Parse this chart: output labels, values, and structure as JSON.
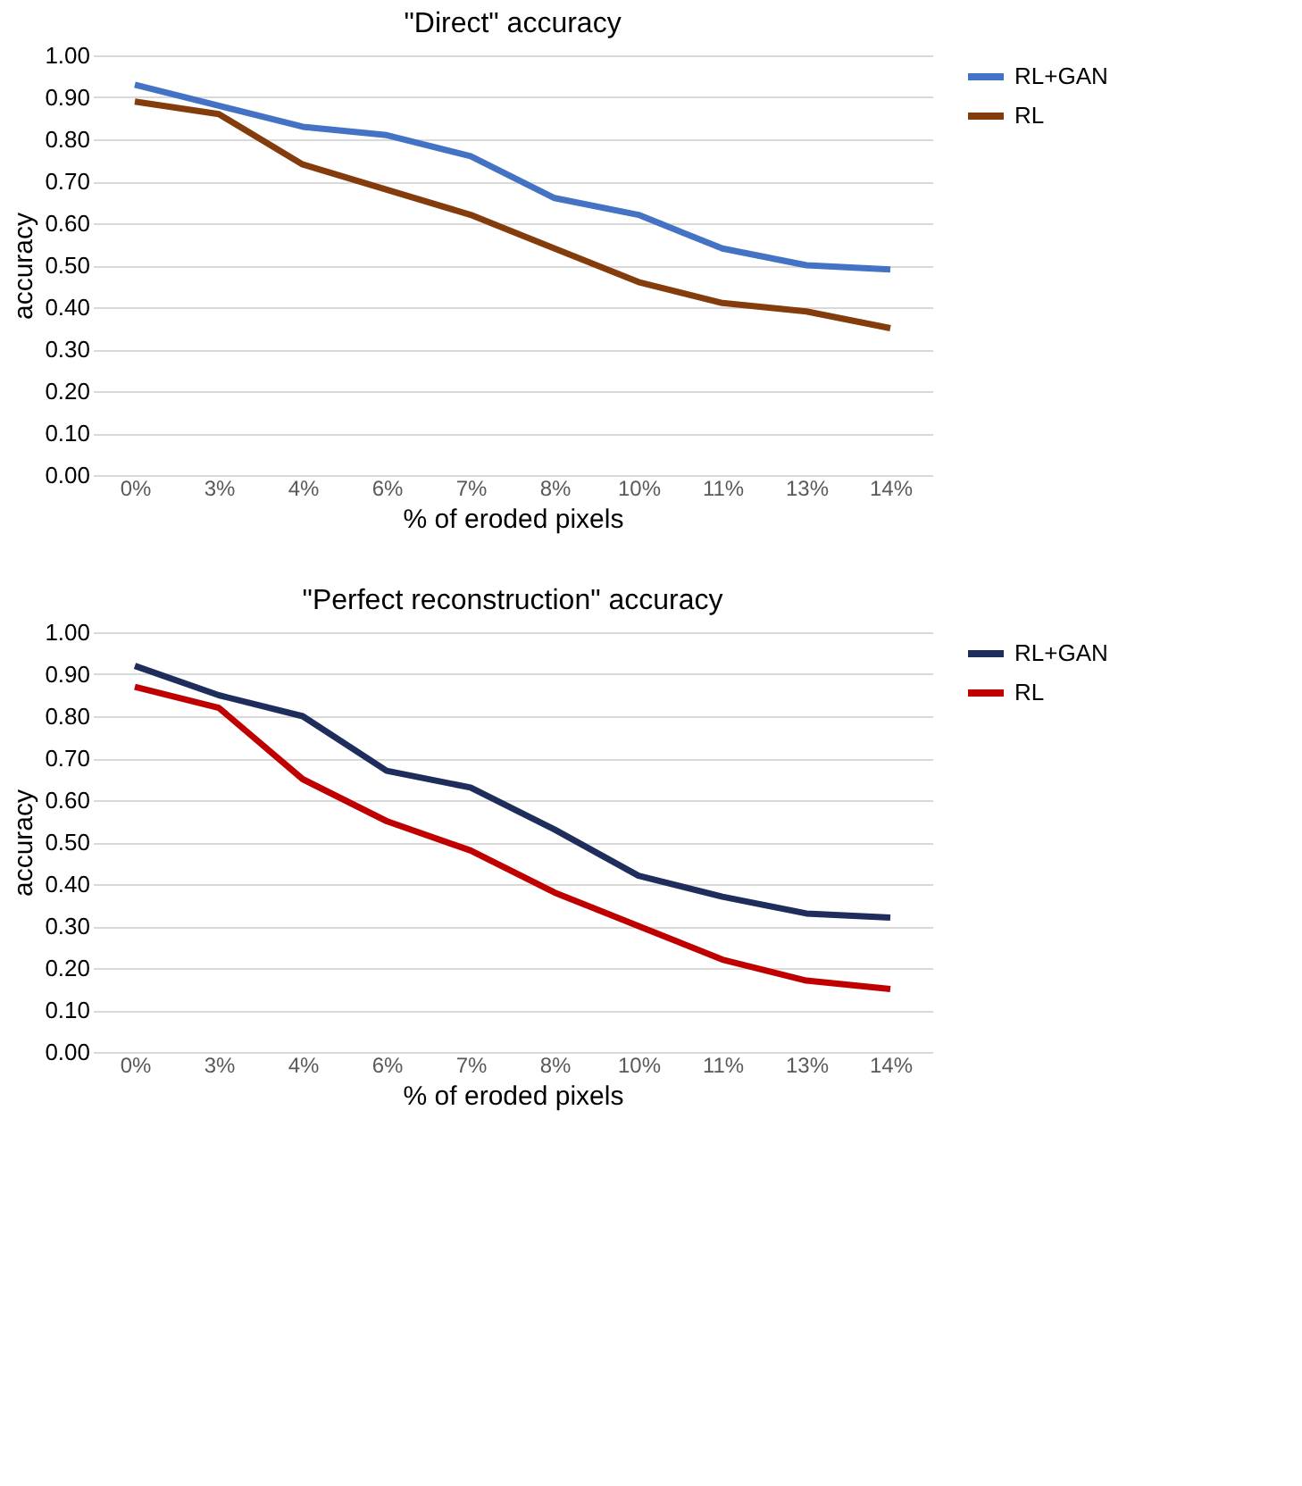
{
  "chart_data": [
    {
      "type": "line",
      "title": "\"Direct\" accuracy",
      "xlabel": "% of eroded pixels",
      "ylabel": "accuracy",
      "categories": [
        "0%",
        "3%",
        "4%",
        "6%",
        "7%",
        "8%",
        "10%",
        "11%",
        "13%",
        "14%"
      ],
      "series": [
        {
          "name": "RL+GAN",
          "color": "#4472c4",
          "values": [
            0.93,
            0.88,
            0.83,
            0.81,
            0.76,
            0.66,
            0.62,
            0.54,
            0.5,
            0.49
          ]
        },
        {
          "name": "RL",
          "color": "#843c0c",
          "values": [
            0.89,
            0.86,
            0.74,
            0.68,
            0.62,
            0.54,
            0.46,
            0.41,
            0.39,
            0.35
          ]
        }
      ],
      "ylim": [
        0,
        1
      ],
      "yticks": [
        {
          "value": 0,
          "label": "0.00"
        },
        {
          "value": 0.1,
          "label": "0.10"
        },
        {
          "value": 0.2,
          "label": "0.20"
        },
        {
          "value": 0.3,
          "label": "0.30"
        },
        {
          "value": 0.4,
          "label": "0.40"
        },
        {
          "value": 0.5,
          "label": "0.50"
        },
        {
          "value": 0.6,
          "label": "0.60"
        },
        {
          "value": 0.7,
          "label": "0.70"
        },
        {
          "value": 0.8,
          "label": "0.80"
        },
        {
          "value": 0.9,
          "label": "0.90"
        },
        {
          "value": 1,
          "label": "1.00"
        }
      ],
      "grid": "y",
      "legend": "right",
      "marker": "none",
      "line_style": "solid"
    },
    {
      "type": "line",
      "title": "\"Perfect reconstruction\" accuracy",
      "xlabel": "% of eroded pixels",
      "ylabel": "accuracy",
      "categories": [
        "0%",
        "3%",
        "4%",
        "6%",
        "7%",
        "8%",
        "10%",
        "11%",
        "13%",
        "14%"
      ],
      "series": [
        {
          "name": "RL+GAN",
          "color": "#1f2d5c",
          "values": [
            0.92,
            0.85,
            0.8,
            0.67,
            0.63,
            0.53,
            0.42,
            0.37,
            0.33,
            0.32
          ]
        },
        {
          "name": "RL",
          "color": "#c00000",
          "values": [
            0.87,
            0.82,
            0.65,
            0.55,
            0.48,
            0.38,
            0.3,
            0.22,
            0.17,
            0.15
          ]
        }
      ],
      "ylim": [
        0,
        1
      ],
      "yticks": [
        {
          "value": 0,
          "label": "0.00"
        },
        {
          "value": 0.1,
          "label": "0.10"
        },
        {
          "value": 0.2,
          "label": "0.20"
        },
        {
          "value": 0.3,
          "label": "0.30"
        },
        {
          "value": 0.4,
          "label": "0.40"
        },
        {
          "value": 0.5,
          "label": "0.50"
        },
        {
          "value": 0.6,
          "label": "0.60"
        },
        {
          "value": 0.7,
          "label": "0.70"
        },
        {
          "value": 0.8,
          "label": "0.80"
        },
        {
          "value": 0.9,
          "label": "0.90"
        },
        {
          "value": 1,
          "label": "1.00"
        }
      ],
      "grid": "y",
      "legend": "right",
      "marker": "none",
      "line_style": "solid"
    }
  ]
}
